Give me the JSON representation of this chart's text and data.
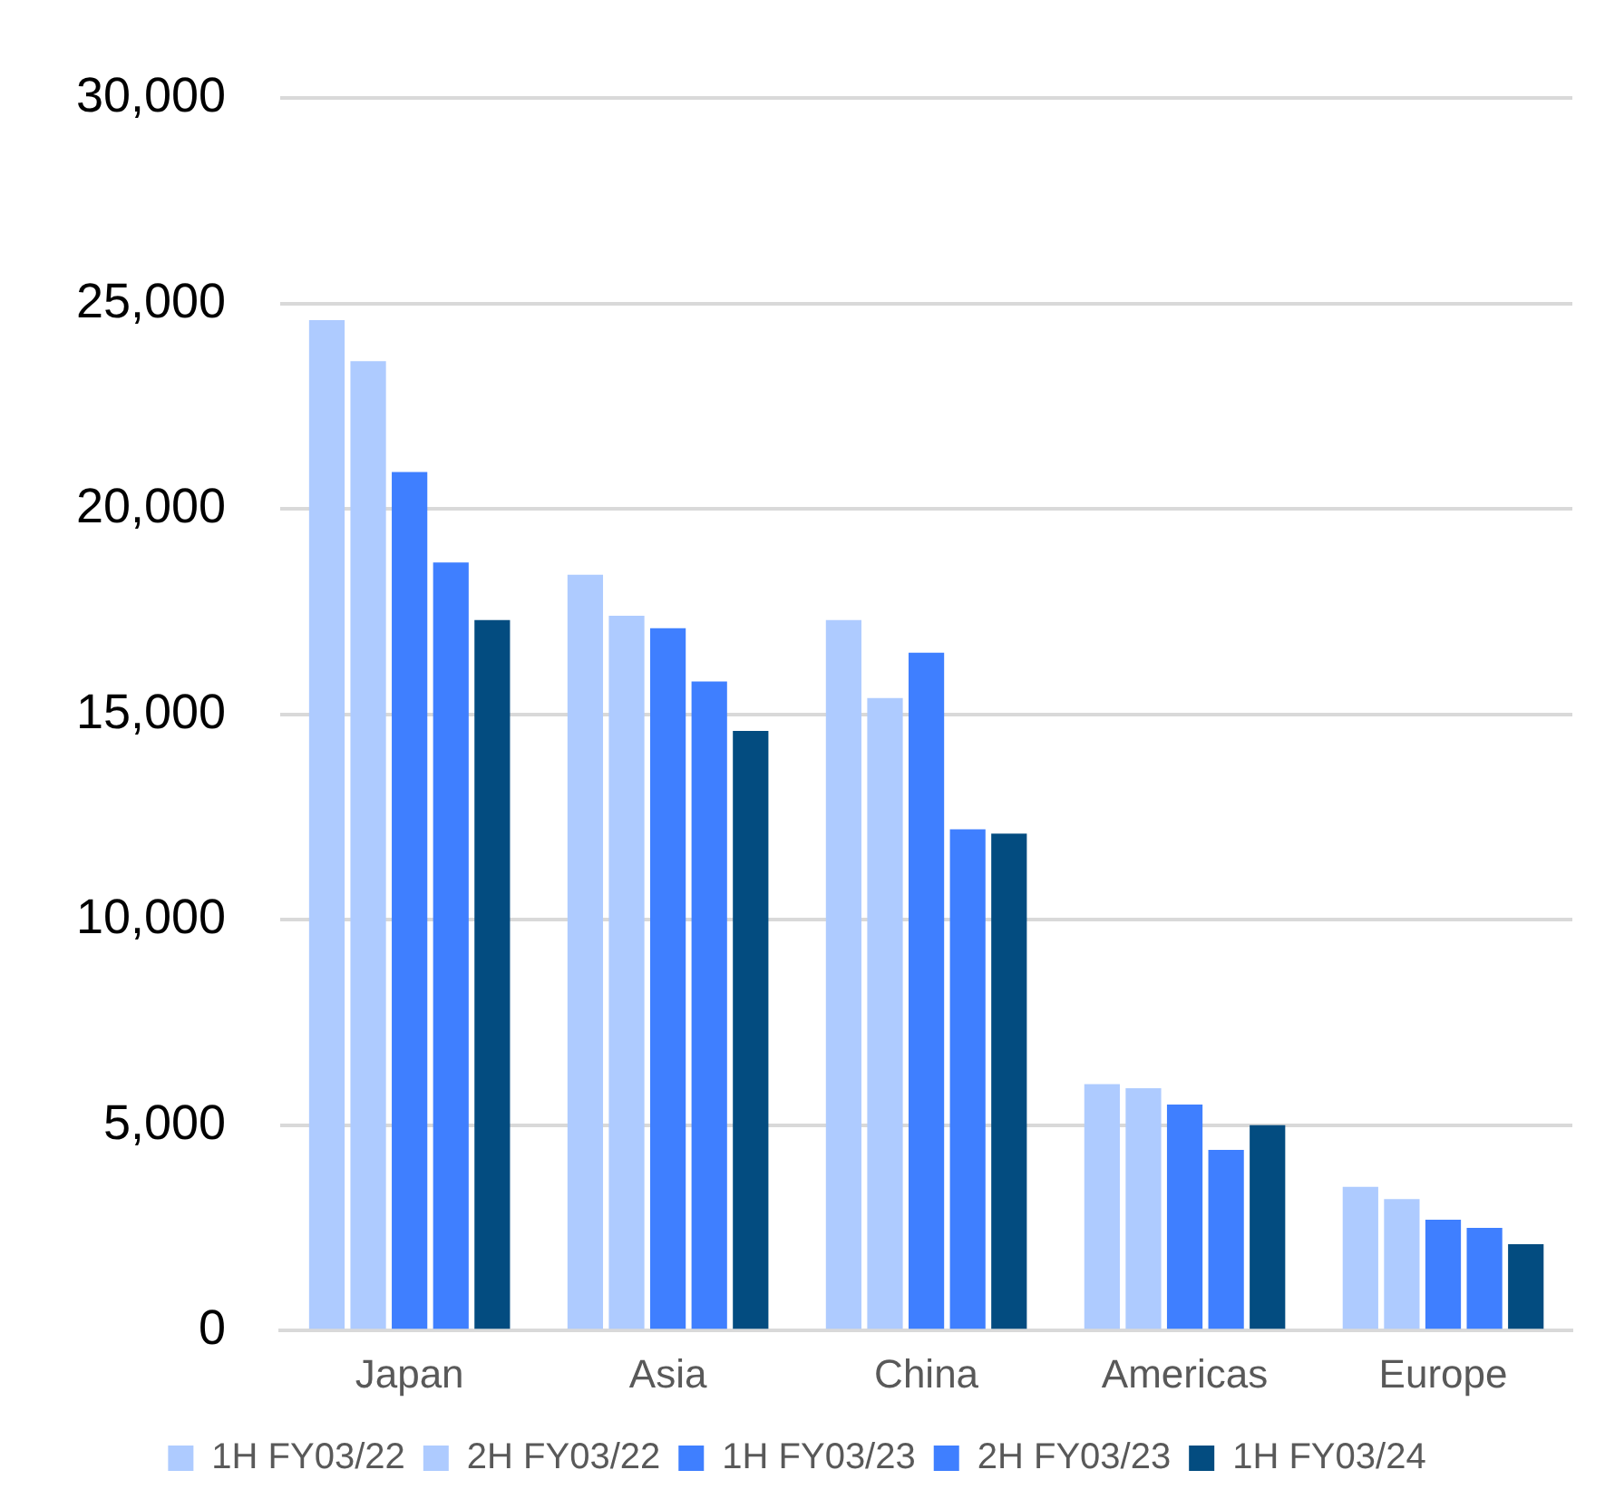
{
  "chart_data": {
    "type": "bar",
    "categories": [
      "Japan",
      "Asia",
      "China",
      "Americas",
      "Europe"
    ],
    "series": [
      {
        "name": "1H FY03/22",
        "color": "#aecbff",
        "values": [
          24600,
          18400,
          17300,
          6000,
          3500
        ]
      },
      {
        "name": "2H FY03/22",
        "color": "#aecbff",
        "values": [
          23600,
          17400,
          15400,
          5900,
          3200
        ]
      },
      {
        "name": "1H FY03/23",
        "color": "#3f7fff",
        "values": [
          20900,
          17100,
          16500,
          5500,
          2700
        ]
      },
      {
        "name": "2H FY03/23",
        "color": "#3f7fff",
        "values": [
          18700,
          15800,
          12200,
          4400,
          2500
        ]
      },
      {
        "name": "1H FY03/24",
        "color": "#034c80",
        "values": [
          17300,
          14600,
          12100,
          5000,
          2100
        ]
      }
    ],
    "ylim": [
      0,
      30000
    ],
    "yticks": [
      {
        "value": 0,
        "label": "0"
      },
      {
        "value": 5000,
        "label": "5,000"
      },
      {
        "value": 10000,
        "label": "10,000"
      },
      {
        "value": 15000,
        "label": "15,000"
      },
      {
        "value": 20000,
        "label": "20,000"
      },
      {
        "value": 25000,
        "label": "25,000"
      },
      {
        "value": 30000,
        "label": "30,000"
      }
    ],
    "grid": "y",
    "legend": "bottom"
  }
}
